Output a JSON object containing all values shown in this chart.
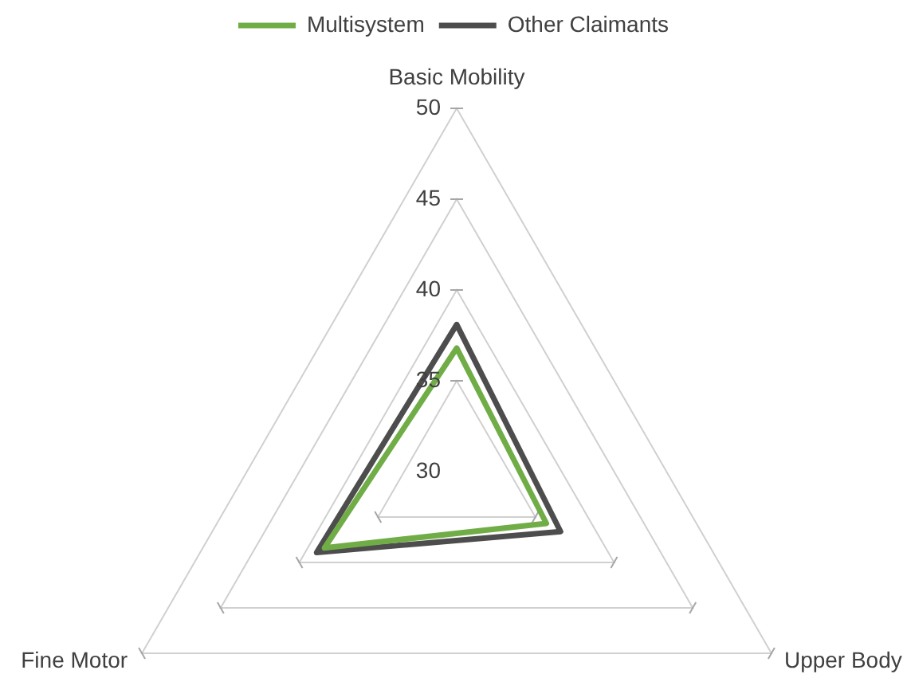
{
  "chart_data": {
    "type": "radar",
    "categories": [
      "Basic Mobility",
      "Upper Body",
      "Fine Motor"
    ],
    "series": [
      {
        "name": "Multisystem",
        "color": "#70ad47",
        "values": [
          36.8,
          35.7,
          38.4
        ]
      },
      {
        "name": "Other Claimants",
        "color": "#4d4d4d",
        "values": [
          38.1,
          36.6,
          38.9
        ]
      }
    ],
    "ylim": [
      30,
      50
    ],
    "yticks": [
      30,
      35,
      40,
      45,
      50
    ],
    "grid": true,
    "legend": "top",
    "marker": "none"
  }
}
